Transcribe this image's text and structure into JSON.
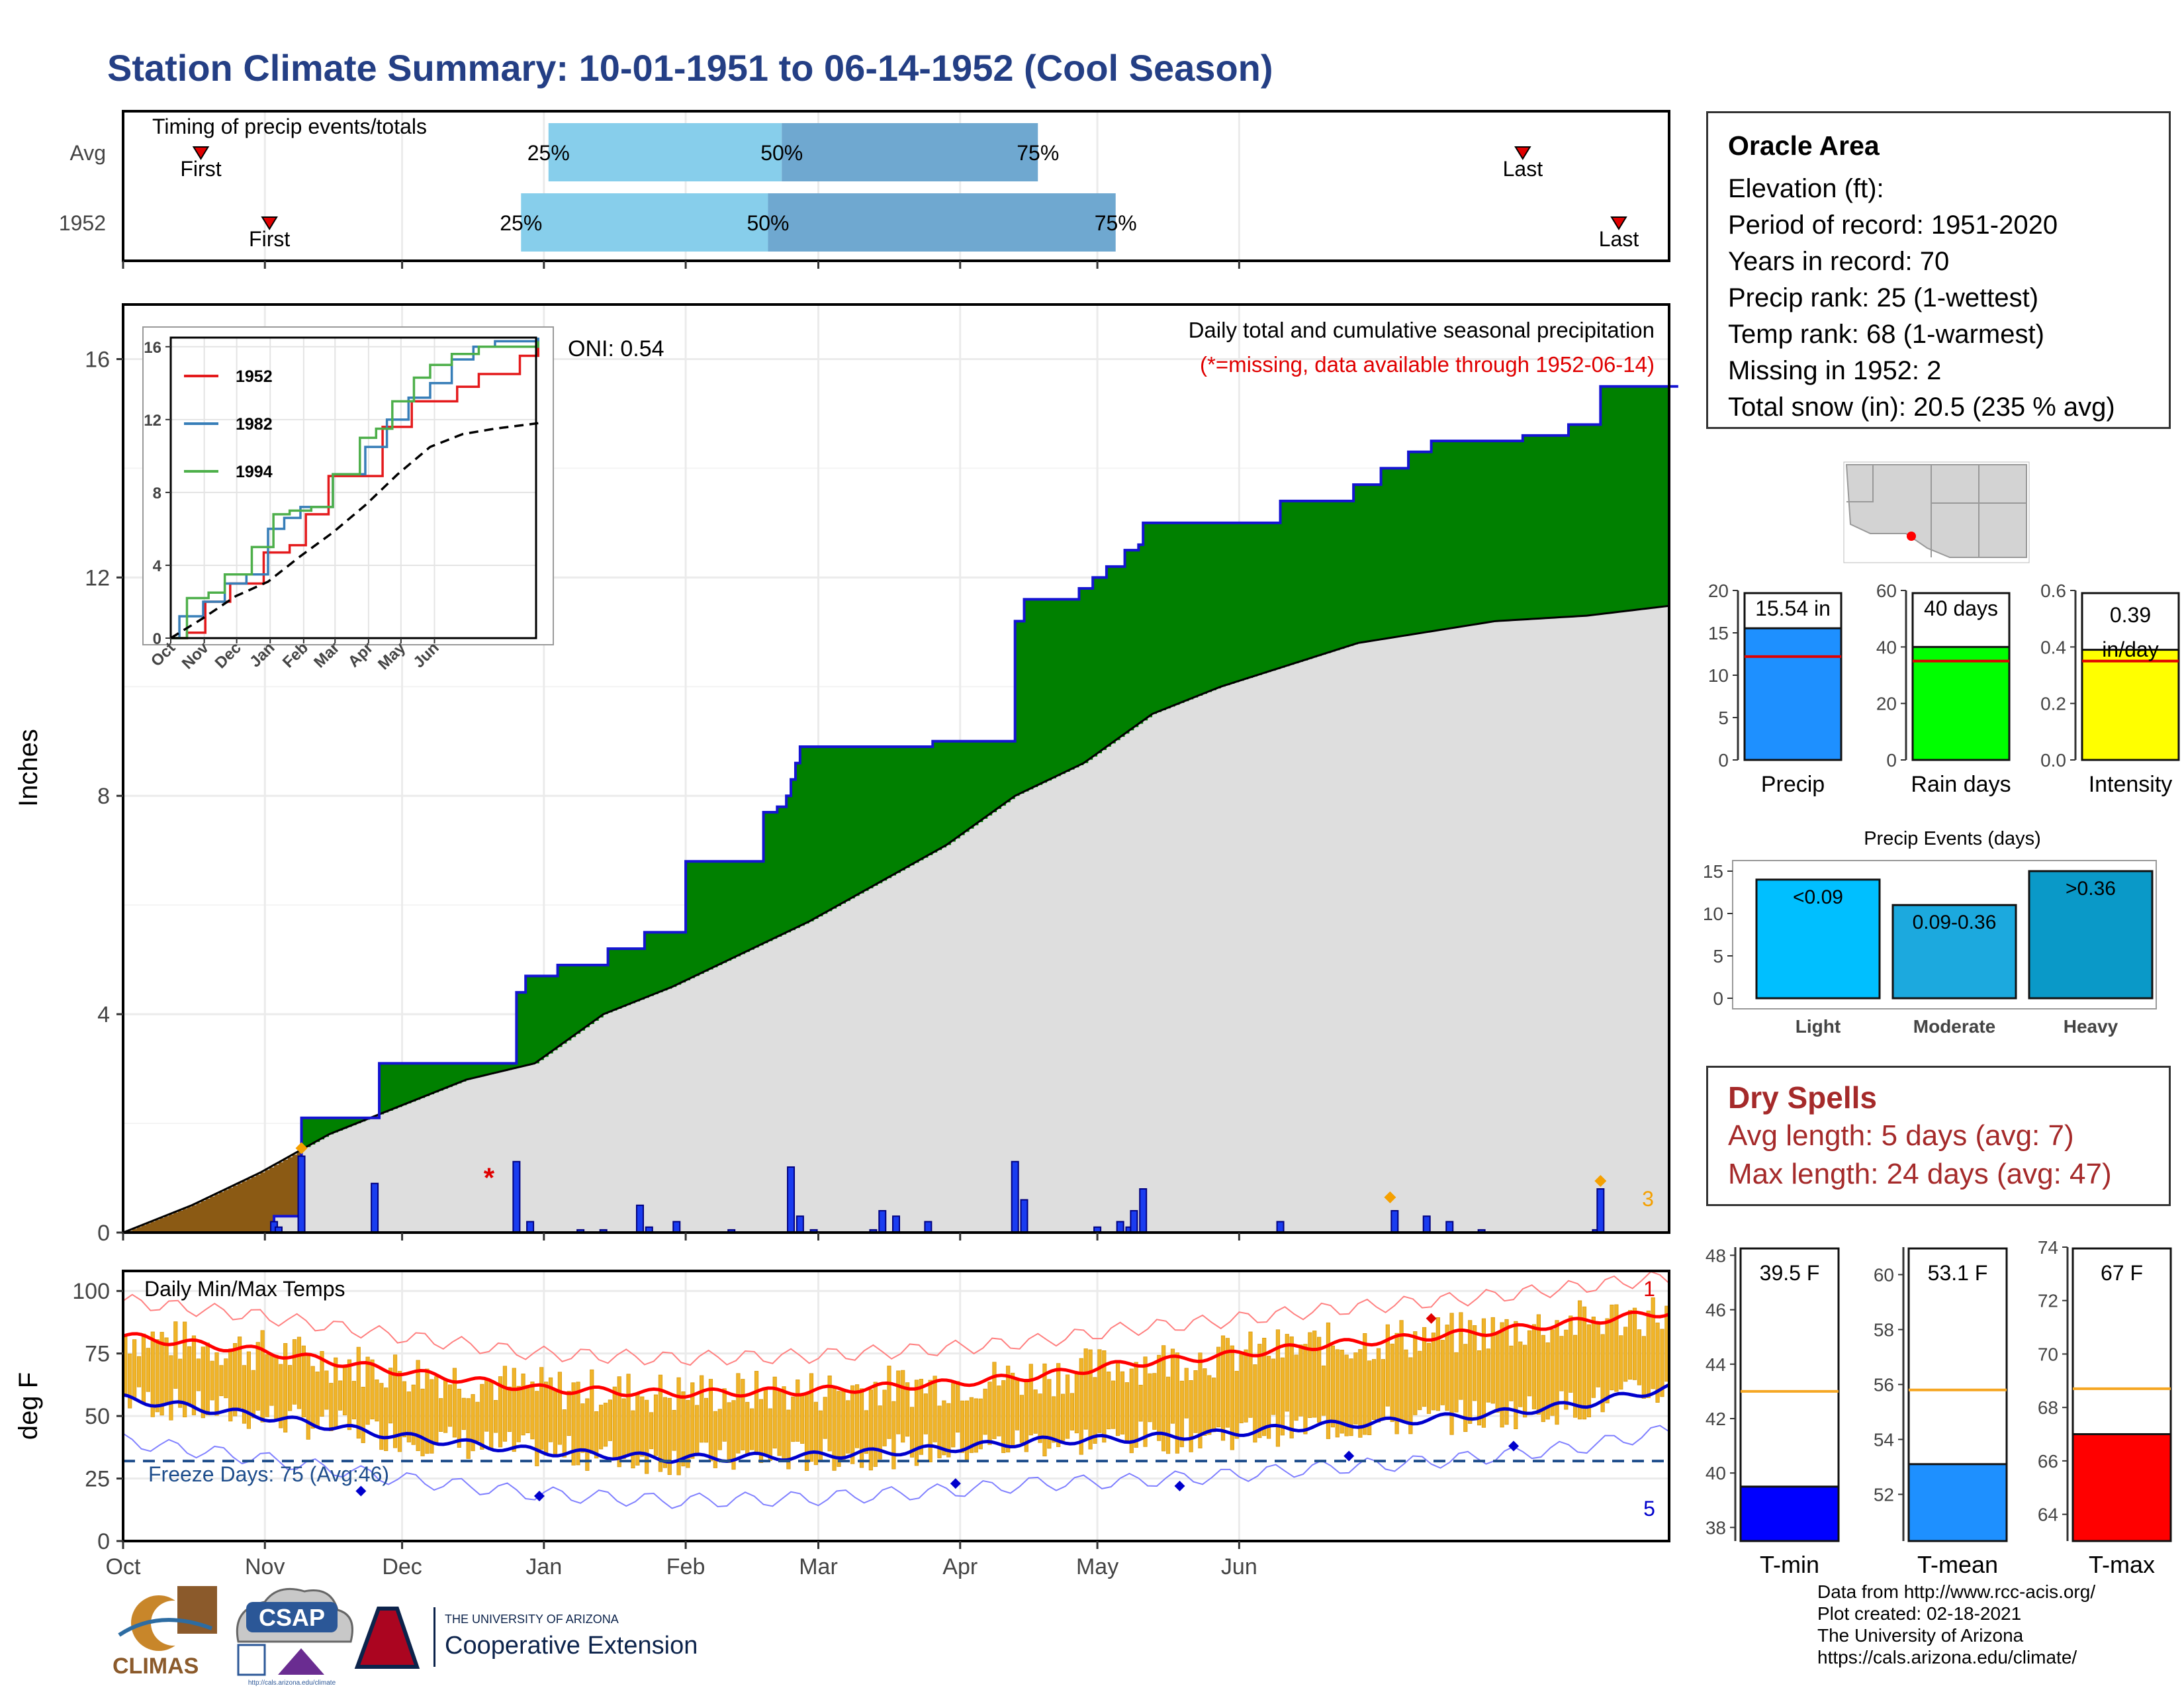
{
  "header": {
    "title": "Station Climate Summary: 10-01-1951 to 06-14-1952 (Cool Season)"
  },
  "timing": {
    "panel_label": "Timing of precip events/totals",
    "rows": [
      {
        "label": "Avg",
        "first": "First",
        "last": "Last",
        "p25": "25%",
        "p50": "50%",
        "p75": "75%"
      },
      {
        "label": "1952",
        "first": "First",
        "last": "Last",
        "p25": "25%",
        "p50": "50%",
        "p75": "75%"
      }
    ]
  },
  "main_panel": {
    "note": "Daily total and cumulative seasonal precipitation",
    "missing_note": "(*=missing, data available through 1952-06-14)",
    "oni": "ONI: 0.54",
    "ylabel": "Inches",
    "yticks": [
      "0",
      "4",
      "8",
      "12",
      "16"
    ],
    "count_label": "3"
  },
  "month_labels": [
    "Oct",
    "Nov",
    "Dec",
    "Jan",
    "Feb",
    "Mar",
    "Apr",
    "May",
    "Jun"
  ],
  "inset": {
    "yticks": [
      "0",
      "4",
      "8",
      "12",
      "16"
    ],
    "months": [
      "Oct",
      "Nov",
      "Dec",
      "Jan",
      "Feb",
      "Mar",
      "Apr",
      "May",
      "Jun"
    ],
    "legend": [
      {
        "name": "1952",
        "color": "#e41a1c"
      },
      {
        "name": "1982",
        "color": "#377eb8"
      },
      {
        "name": "1994",
        "color": "#4daf4a"
      }
    ]
  },
  "info": {
    "station": "Oracle Area",
    "elevation": "Elevation (ft):",
    "period": "Period of record: 1951-2020",
    "years": "Years in record: 70",
    "precip_rank": "Precip rank: 25 (1-wettest)",
    "temp_rank": "Temp rank: 68 (1-warmest)",
    "missing": "Missing in 1952: 2",
    "snow": "Total snow (in): 20.5 (235 % avg)"
  },
  "dry_spells": {
    "title": "Dry Spells",
    "avg": "Avg length: 5 days (avg: 7)",
    "max": "Max length: 24 days (avg: 47)"
  },
  "temp_panel": {
    "label": "Daily Min/Max Temps",
    "ylabel": "deg F",
    "yticks": [
      "0",
      "25",
      "50",
      "75",
      "100"
    ],
    "freeze": "Freeze Days: 75 (Avg:46)",
    "count_max": "1",
    "count_min": "5"
  },
  "credits": [
    "Data from http://www.rcc-acis.org/",
    "Plot created: 02-18-2021",
    "The University of Arizona",
    "https://cals.arizona.edu/climate/"
  ],
  "logos": {
    "climas": "CLIMAS",
    "csap": "CSAP",
    "csap_url": "http://cals.arizona.edu/climate",
    "ua_small": "THE UNIVERSITY OF ARIZONA",
    "ua_big": "Cooperative Extension"
  },
  "chart_data": [
    {
      "type": "line",
      "name": "timing",
      "xaxis": "days since Oct 1",
      "rows": [
        {
          "label": "Avg",
          "first": 17,
          "p25": 93,
          "p50": 144,
          "p75": 200,
          "last": 306
        },
        {
          "label": "1952",
          "first": 32,
          "p25": 87,
          "p50": 141,
          "p75": 217,
          "last": 327
        }
      ]
    },
    {
      "type": "area",
      "name": "cumulative precipitation",
      "ylabel": "Inches",
      "ylim": [
        0,
        17
      ],
      "grid": true,
      "cumulative_1952": [
        [
          0,
          0
        ],
        [
          33,
          0.3
        ],
        [
          39,
          2.1
        ],
        [
          55,
          2.1
        ],
        [
          56,
          3.1
        ],
        [
          85,
          3.1
        ],
        [
          86,
          4.4
        ],
        [
          88,
          4.7
        ],
        [
          94,
          4.7
        ],
        [
          95,
          4.9
        ],
        [
          104,
          4.9
        ],
        [
          106,
          5.2
        ],
        [
          113,
          5.2
        ],
        [
          114,
          5.5
        ],
        [
          122,
          5.5
        ],
        [
          123,
          6.8
        ],
        [
          139,
          6.8
        ],
        [
          140,
          7.7
        ],
        [
          143,
          7.8
        ],
        [
          145,
          8.0
        ],
        [
          146,
          8.3
        ],
        [
          147,
          8.6
        ],
        [
          148,
          8.9
        ],
        [
          176,
          8.9
        ],
        [
          177,
          9.0
        ],
        [
          194,
          9.0
        ],
        [
          195,
          11.2
        ],
        [
          197,
          11.6
        ],
        [
          208,
          11.6
        ],
        [
          209,
          11.8
        ],
        [
          212,
          12.0
        ],
        [
          215,
          12.2
        ],
        [
          219,
          12.5
        ],
        [
          222,
          12.6
        ],
        [
          223,
          13.0
        ],
        [
          252,
          13.0
        ],
        [
          253,
          13.4
        ],
        [
          268,
          13.4
        ],
        [
          269,
          13.7
        ],
        [
          274,
          13.7
        ],
        [
          275,
          14.0
        ],
        [
          280,
          14.0
        ],
        [
          281,
          14.3
        ],
        [
          285,
          14.3
        ],
        [
          286,
          14.5
        ],
        [
          305,
          14.5
        ],
        [
          306,
          14.6
        ],
        [
          315,
          14.6
        ],
        [
          316,
          14.8
        ],
        [
          322,
          14.8
        ],
        [
          323,
          15.5
        ],
        [
          340,
          15.5
        ]
      ],
      "average_cumulative": [
        [
          0,
          0
        ],
        [
          15,
          0.5
        ],
        [
          30,
          1.1
        ],
        [
          45,
          1.8
        ],
        [
          60,
          2.3
        ],
        [
          75,
          2.8
        ],
        [
          90,
          3.1
        ],
        [
          105,
          4.0
        ],
        [
          120,
          4.5
        ],
        [
          135,
          5.1
        ],
        [
          150,
          5.7
        ],
        [
          165,
          6.4
        ],
        [
          180,
          7.1
        ],
        [
          195,
          8.0
        ],
        [
          210,
          8.6
        ],
        [
          225,
          9.5
        ],
        [
          240,
          10.0
        ],
        [
          255,
          10.4
        ],
        [
          270,
          10.8
        ],
        [
          285,
          11.0
        ],
        [
          300,
          11.2
        ],
        [
          320,
          11.3
        ],
        [
          340,
          11.5
        ]
      ],
      "daily_precip": [
        [
          33,
          0.2
        ],
        [
          34,
          0.1
        ],
        [
          39,
          1.4
        ],
        [
          55,
          0.9
        ],
        [
          86,
          1.3
        ],
        [
          89,
          0.2
        ],
        [
          100,
          0.05
        ],
        [
          105,
          0.05
        ],
        [
          113,
          0.5
        ],
        [
          115,
          0.1
        ],
        [
          121,
          0.2
        ],
        [
          133,
          0.05
        ],
        [
          146,
          1.2
        ],
        [
          148,
          0.3
        ],
        [
          151,
          0.05
        ],
        [
          164,
          0.05
        ],
        [
          166,
          0.4
        ],
        [
          169,
          0.3
        ],
        [
          176,
          0.2
        ],
        [
          195,
          1.3
        ],
        [
          197,
          0.6
        ],
        [
          213,
          0.1
        ],
        [
          218,
          0.2
        ],
        [
          220,
          0.1
        ],
        [
          221,
          0.4
        ],
        [
          223,
          0.8
        ],
        [
          253,
          0.2
        ],
        [
          278,
          0.4
        ],
        [
          285,
          0.3
        ],
        [
          290,
          0.2
        ],
        [
          297,
          0.05
        ],
        [
          322,
          0.05
        ],
        [
          323,
          0.8
        ]
      ],
      "markers": {
        "missing": "*",
        "snow_days": [
          39,
          277,
          323
        ]
      }
    },
    {
      "type": "line",
      "name": "inset cumulative",
      "ylim": [
        0,
        16.5
      ],
      "series": [
        {
          "name": "1952",
          "points": [
            [
              0,
              0
            ],
            [
              15,
              0.3
            ],
            [
              32,
              2.0
            ],
            [
              55,
              3.0
            ],
            [
              86,
              4.7
            ],
            [
              110,
              5.1
            ],
            [
              125,
              6.8
            ],
            [
              146,
              8.9
            ],
            [
              196,
              11.6
            ],
            [
              223,
              13.0
            ],
            [
              252,
              13.0
            ],
            [
              265,
              13.8
            ],
            [
              285,
              14.5
            ],
            [
              323,
              15.5
            ],
            [
              340,
              16.0
            ]
          ]
        },
        {
          "name": "1982",
          "points": [
            [
              0,
              0
            ],
            [
              8,
              1.2
            ],
            [
              30,
              2.0
            ],
            [
              50,
              3.0
            ],
            [
              70,
              3.5
            ],
            [
              90,
              6.0
            ],
            [
              105,
              6.6
            ],
            [
              120,
              7.2
            ],
            [
              150,
              9.0
            ],
            [
              180,
              10.5
            ],
            [
              200,
              12.0
            ],
            [
              220,
              13.2
            ],
            [
              240,
              14.0
            ],
            [
              260,
              15.3
            ],
            [
              280,
              16.0
            ],
            [
              300,
              16.3
            ],
            [
              340,
              16.5
            ]
          ]
        },
        {
          "name": "1994",
          "points": [
            [
              0,
              0
            ],
            [
              15,
              2.2
            ],
            [
              35,
              2.5
            ],
            [
              50,
              3.5
            ],
            [
              75,
              5.0
            ],
            [
              95,
              6.8
            ],
            [
              110,
              7.0
            ],
            [
              130,
              7.2
            ],
            [
              150,
              9.0
            ],
            [
              175,
              11.0
            ],
            [
              190,
              11.5
            ],
            [
              205,
              13.0
            ],
            [
              225,
              14.3
            ],
            [
              240,
              15.0
            ],
            [
              260,
              15.6
            ],
            [
              285,
              16.0
            ],
            [
              340,
              16.3
            ]
          ]
        },
        {
          "name": "average",
          "points": [
            [
              0,
              0
            ],
            [
              30,
              1.1
            ],
            [
              60,
              2.3
            ],
            [
              90,
              3.1
            ],
            [
              120,
              4.5
            ],
            [
              150,
              5.8
            ],
            [
              180,
              7.3
            ],
            [
              210,
              9.0
            ],
            [
              240,
              10.5
            ],
            [
              270,
              11.2
            ],
            [
              300,
              11.5
            ],
            [
              340,
              11.8
            ]
          ]
        }
      ]
    },
    {
      "type": "bar",
      "name": "precip summary",
      "categories": [
        "Precip",
        "Rain days",
        "Intensity"
      ],
      "values": [
        15.54,
        40,
        0.39
      ],
      "averages": [
        12.2,
        35,
        0.35
      ],
      "value_labels": [
        "15.54 in",
        "40 days",
        "0.39 in/day"
      ],
      "ylims": [
        [
          0,
          20
        ],
        [
          0,
          60
        ],
        [
          0,
          0.6
        ]
      ],
      "colors": [
        "#1e90ff",
        "#00ff00",
        "#ffff00"
      ]
    },
    {
      "type": "bar",
      "name": "Precip Events (days)",
      "title": "Precip Events (days)",
      "categories": [
        "Light",
        "Moderate",
        "Heavy"
      ],
      "values": [
        14,
        11,
        15
      ],
      "bar_labels": [
        "<0.09",
        "0.09-0.36",
        ">0.36"
      ],
      "ylim": [
        0,
        15
      ],
      "colors": [
        "#00bfff",
        "#1ca9de",
        "#0a99c8"
      ]
    },
    {
      "type": "line",
      "name": "daily temps",
      "ylabel": "deg F",
      "ylim": [
        0,
        108
      ],
      "avg_max": [
        [
          0,
          82
        ],
        [
          30,
          76
        ],
        [
          60,
          68
        ],
        [
          90,
          61
        ],
        [
          120,
          59
        ],
        [
          150,
          60
        ],
        [
          180,
          63
        ],
        [
          200,
          66
        ],
        [
          220,
          71
        ],
        [
          240,
          74
        ],
        [
          260,
          78
        ],
        [
          280,
          81
        ],
        [
          300,
          84
        ],
        [
          320,
          88
        ],
        [
          340,
          92
        ]
      ],
      "avg_min": [
        [
          0,
          57
        ],
        [
          30,
          50
        ],
        [
          60,
          42
        ],
        [
          90,
          36
        ],
        [
          120,
          33
        ],
        [
          150,
          34
        ],
        [
          180,
          37
        ],
        [
          200,
          40
        ],
        [
          220,
          41
        ],
        [
          240,
          43
        ],
        [
          260,
          46
        ],
        [
          280,
          48
        ],
        [
          300,
          51
        ],
        [
          320,
          55
        ],
        [
          340,
          62
        ]
      ],
      "freeze_line": 32,
      "record_min_days": [
        [
          91,
          18
        ],
        [
          182,
          23
        ],
        [
          231,
          22
        ],
        [
          268,
          34
        ],
        [
          304,
          38
        ],
        [
          52,
          20
        ]
      ],
      "record_max_days": [
        [
          286,
          89
        ]
      ]
    },
    {
      "type": "bar",
      "name": "temperature summary",
      "categories": [
        "T-min",
        "T-mean",
        "T-max"
      ],
      "values": [
        39.5,
        53.1,
        67
      ],
      "averages": [
        43.0,
        55.8,
        68.7
      ],
      "value_labels": [
        "39.5 F",
        "53.1 F",
        "67 F"
      ],
      "ylims": [
        [
          37.5,
          48.3
        ],
        [
          50.3,
          61.0
        ],
        [
          63.0,
          74.0
        ]
      ],
      "yticks": [
        [
          38,
          40,
          42,
          44,
          46,
          48
        ],
        [
          52,
          54,
          56,
          58,
          60
        ],
        [
          64,
          66,
          68,
          70,
          72,
          74
        ]
      ],
      "colors": [
        "#0000ff",
        "#1e90ff",
        "#ff0000"
      ]
    }
  ]
}
